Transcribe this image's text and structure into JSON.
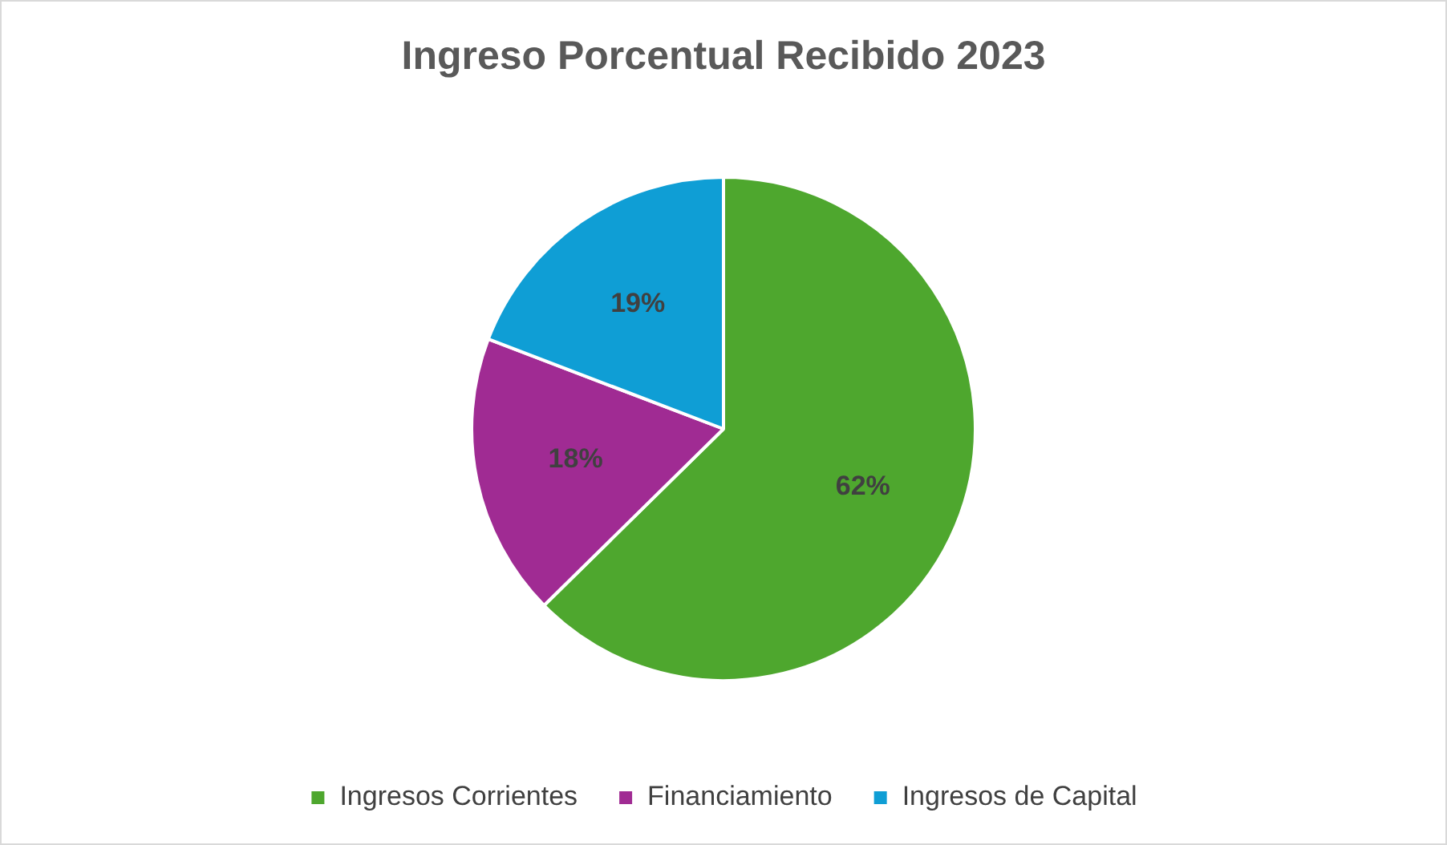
{
  "chart_data": {
    "type": "pie",
    "title": "Ingreso Porcentual Recibido 2023",
    "categories": [
      "Ingresos Corrientes",
      "Financiamiento",
      "Ingresos de Capital"
    ],
    "values": [
      62,
      18,
      19
    ],
    "colors": [
      "#4ea72e",
      "#a02b93",
      "#0f9ed5"
    ],
    "value_labels": [
      "62%",
      "18%",
      "19%"
    ],
    "legend": "bottom"
  }
}
